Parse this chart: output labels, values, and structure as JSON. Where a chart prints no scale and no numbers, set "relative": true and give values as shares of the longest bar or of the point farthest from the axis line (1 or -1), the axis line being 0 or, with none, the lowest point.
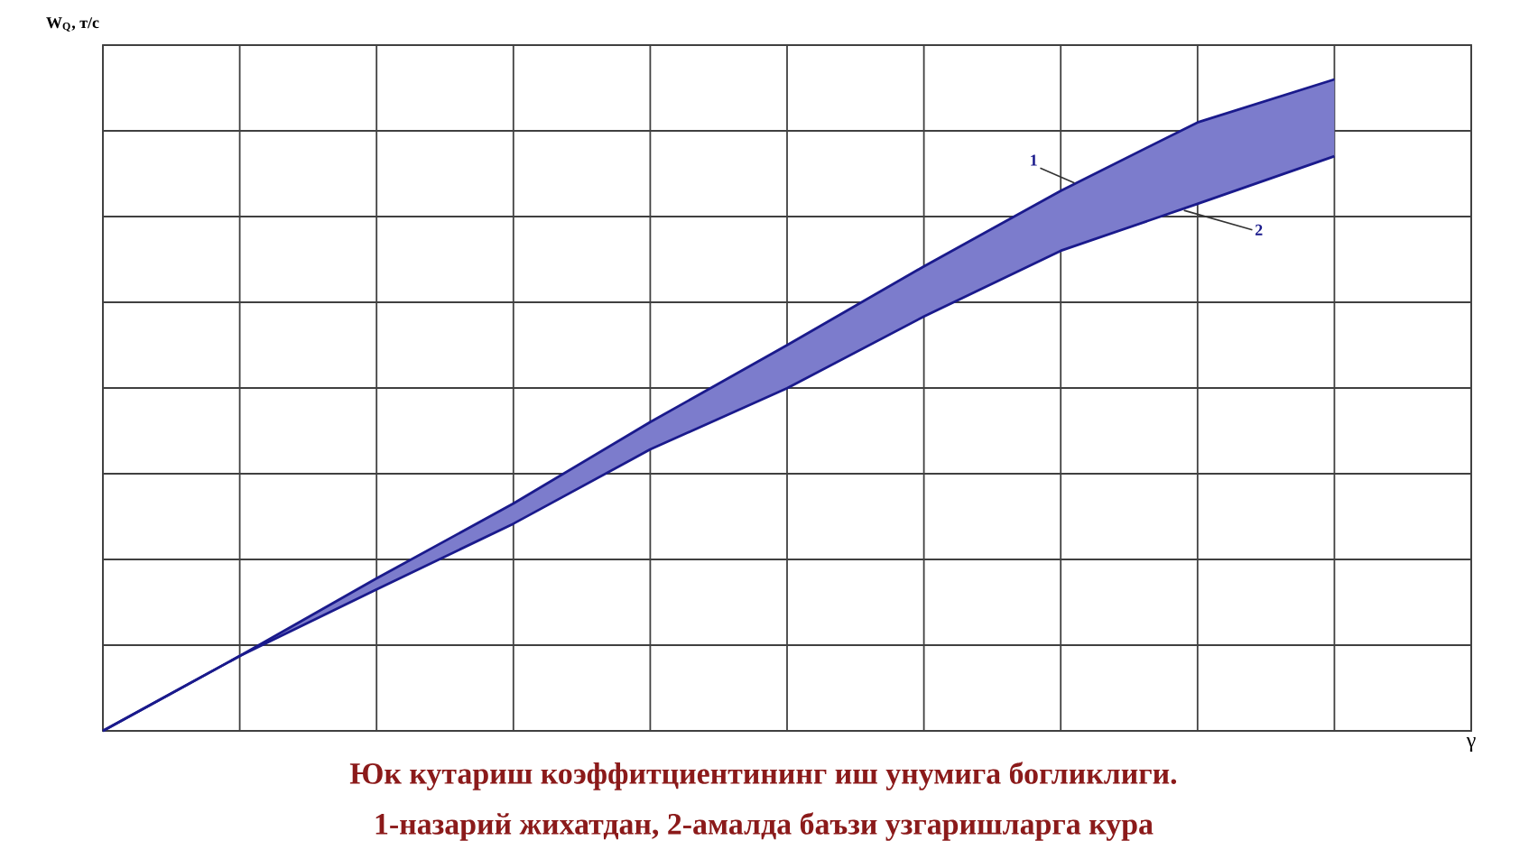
{
  "chart_data": {
    "type": "line",
    "title": "Юк кутариш коэффитциентининг иш унумига богликлиги.",
    "subtitle": "1-назарий жихатдан, 2-амалда баъзи узгаришларга кура",
    "xlabel": "γ",
    "ylabel": "W$_{Q}$, т/с",
    "relative": true,
    "grid": true,
    "marker": "none",
    "line_style": "solid",
    "categories": [
      null,
      null,
      null,
      null,
      null,
      null,
      null,
      null,
      null,
      null
    ],
    "series": [
      {
        "name": "1",
        "color": "#1a1a8c",
        "values": [
          0,
          0.115,
          0.234,
          0.349,
          0.474,
          0.592,
          0.713,
          0.829,
          0.934,
          1.0
        ]
      },
      {
        "name": "2",
        "color": "#1a1a8c",
        "values": [
          0,
          0.115,
          0.217,
          0.318,
          0.432,
          0.526,
          0.636,
          0.737,
          0.809,
          0.882
        ]
      }
    ]
  }
}
